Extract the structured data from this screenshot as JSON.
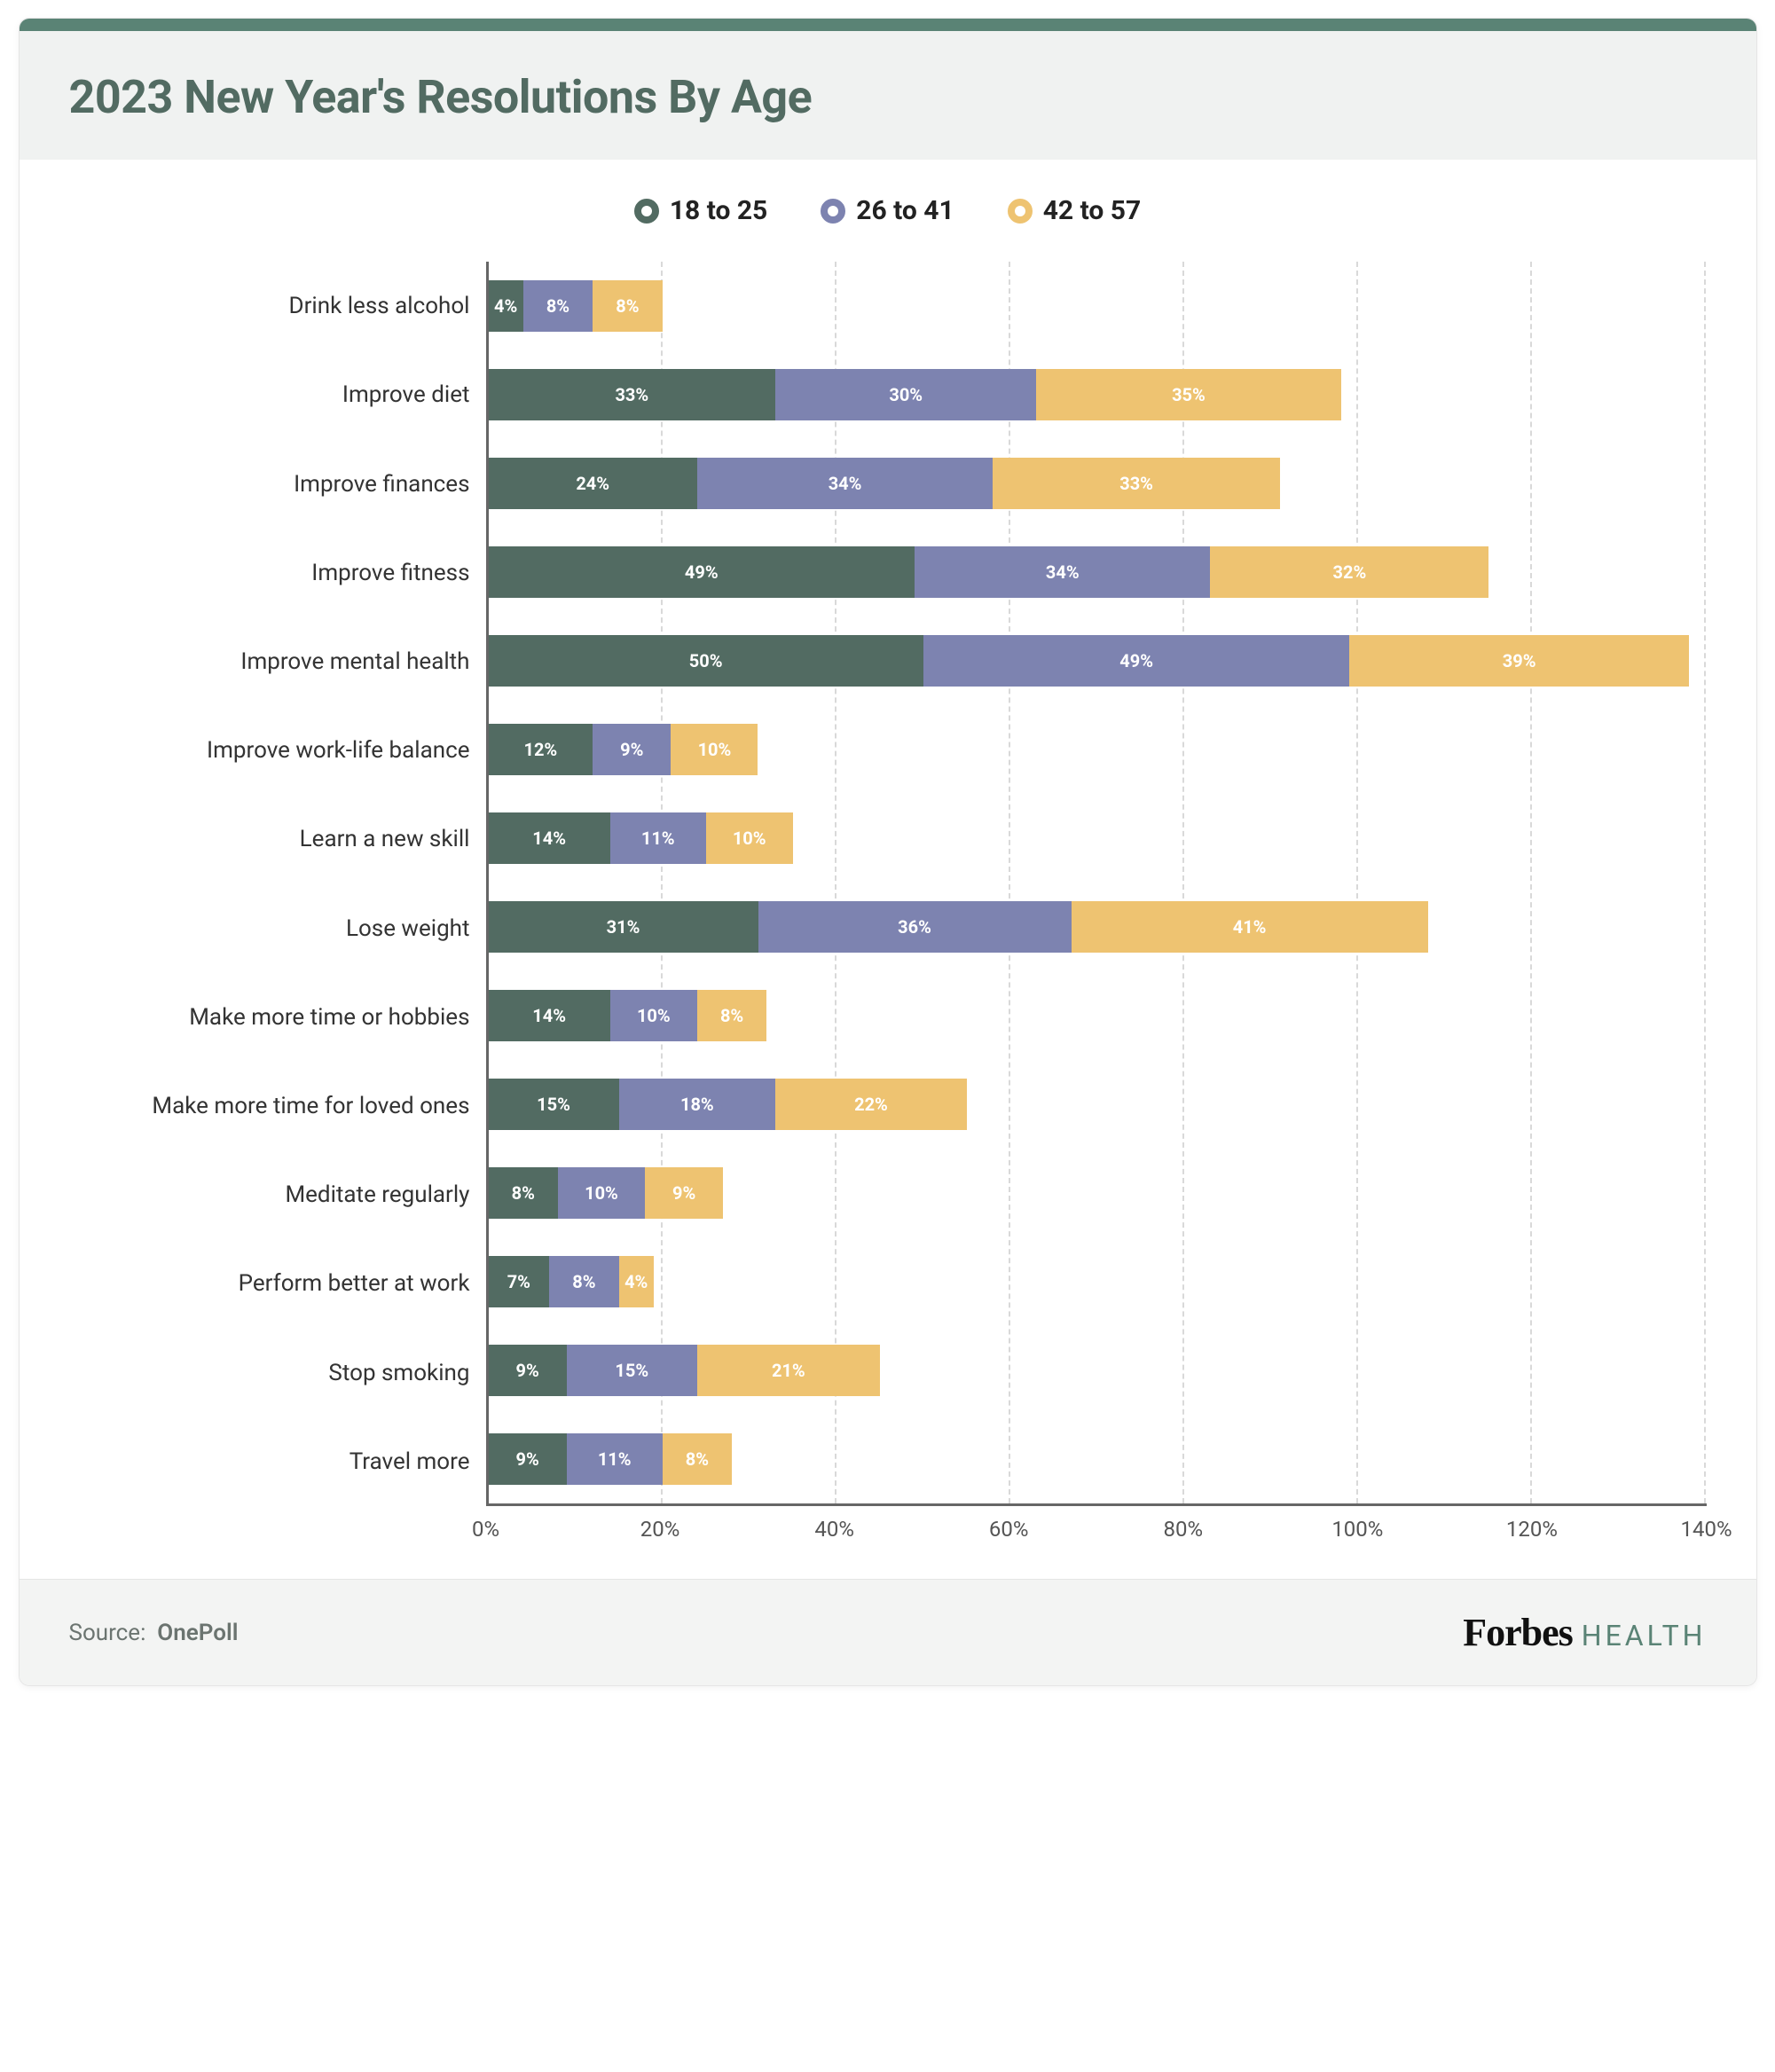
{
  "title": "2023 New Year's Resolutions By Age",
  "colors": {
    "top_stripe": "#5a8375",
    "header_bg": "#f0f2f1",
    "title_color": "#526b62",
    "series": [
      "#526b62",
      "#7d83b0",
      "#eec371"
    ],
    "grid": "#d9d9d9",
    "axis": "#666666"
  },
  "legend": [
    {
      "label": "18 to 25",
      "marker": "#526b62"
    },
    {
      "label": "26 to 41",
      "marker": "#7d83b0"
    },
    {
      "label": "42 to 57",
      "marker": "#eec371"
    }
  ],
  "x_axis": {
    "min": 0,
    "max": 140,
    "step": 20,
    "suffix": "%"
  },
  "categories": [
    {
      "label": "Drink less alcohol",
      "values": [
        4,
        8,
        8
      ]
    },
    {
      "label": "Improve diet",
      "values": [
        33,
        30,
        35
      ]
    },
    {
      "label": "Improve finances",
      "values": [
        24,
        34,
        33
      ]
    },
    {
      "label": "Improve fitness",
      "values": [
        49,
        34,
        32
      ]
    },
    {
      "label": "Improve mental health",
      "values": [
        50,
        49,
        39
      ]
    },
    {
      "label": "Improve work-life  balance",
      "values": [
        12,
        9,
        10
      ]
    },
    {
      "label": "Learn a new skill",
      "values": [
        14,
        11,
        10
      ]
    },
    {
      "label": "Lose weight",
      "values": [
        31,
        36,
        41
      ]
    },
    {
      "label": "Make more time or hobbies",
      "values": [
        14,
        10,
        8
      ]
    },
    {
      "label": "Make more time for loved ones",
      "values": [
        15,
        18,
        22
      ]
    },
    {
      "label": "Meditate regularly",
      "values": [
        8,
        10,
        9
      ]
    },
    {
      "label": "Perform better at work",
      "values": [
        7,
        8,
        4
      ]
    },
    {
      "label": "Stop smoking",
      "values": [
        9,
        15,
        21
      ]
    },
    {
      "label": "Travel more",
      "values": [
        9,
        11,
        8
      ]
    }
  ],
  "footer": {
    "source_prefix": "Source:",
    "source_name": "OnePoll",
    "brand_main": "Forbes",
    "brand_sub": "HEALTH"
  }
}
